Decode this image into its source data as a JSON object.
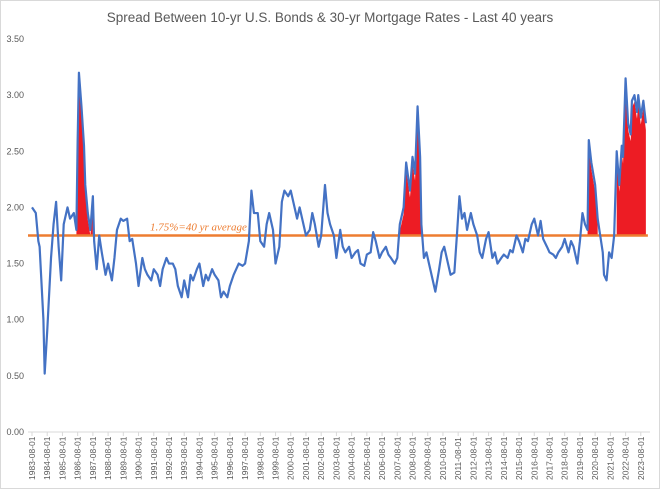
{
  "chart_data": {
    "type": "line",
    "title": "Spread Between 10-yr U.S. Bonds & 30-yr Mortgage Rates - Last 40 years",
    "xlabel": "",
    "ylabel": "",
    "ylim": [
      0,
      3.5
    ],
    "yticks": [
      "0.00",
      "0.50",
      "1.00",
      "1.50",
      "2.00",
      "2.50",
      "3.00",
      "3.50"
    ],
    "xtick_labels": [
      "1983-08-01",
      "1984-08-01",
      "1985-08-01",
      "1986-08-01",
      "1987-08-01",
      "1988-08-01",
      "1989-08-01",
      "1990-08-01",
      "1991-08-01",
      "1992-08-01",
      "1993-08-01",
      "1994-08-01",
      "1995-08-01",
      "1996-08-01",
      "1997-08-01",
      "1998-08-01",
      "1999-08-01",
      "2000-08-01",
      "2001-08-01",
      "2002-08-01",
      "2003-08-01",
      "2004-08-01",
      "2005-08-01",
      "2006-08-01",
      "2007-08-01",
      "2008-08-01",
      "2009-08-01",
      "2010-08-01",
      "2011-08-01",
      "2012-08-01",
      "2013-08-01",
      "2014-08-01",
      "2015-08-01",
      "2016-08-01",
      "2017-08-01",
      "2018-08-01",
      "2019-08-01",
      "2020-08-01",
      "2021-08-01",
      "2022-08-01",
      "2023-08-01"
    ],
    "grid": false,
    "colors": {
      "spread": "#4472c4",
      "average": "#ed7d31",
      "above_average_fill": "#ed1c24"
    },
    "average": {
      "value": 1.75,
      "label": "1.75%=40 yr average"
    },
    "highlight_ranges": [
      [
        "1986-07",
        "1987-08"
      ],
      [
        "2007-09",
        "2009-03"
      ],
      [
        "2020-02",
        "2020-11"
      ],
      [
        "2021-12",
        "2023-12"
      ]
    ],
    "series": [
      {
        "values": [
          [
            "1983-08",
            2.0
          ],
          [
            "1983-11",
            1.95
          ],
          [
            "1984-01",
            1.7
          ],
          [
            "1984-02",
            1.65
          ],
          [
            "1984-05",
            1.0
          ],
          [
            "1984-06",
            0.52
          ],
          [
            "1984-08",
            0.9
          ],
          [
            "1984-11",
            1.55
          ],
          [
            "1985-01",
            1.85
          ],
          [
            "1985-03",
            2.05
          ],
          [
            "1985-05",
            1.65
          ],
          [
            "1985-07",
            1.35
          ],
          [
            "1985-09",
            1.85
          ],
          [
            "1985-12",
            2.0
          ],
          [
            "1986-02",
            1.9
          ],
          [
            "1986-05",
            1.95
          ],
          [
            "1986-07",
            1.8
          ],
          [
            "1986-08",
            2.6
          ],
          [
            "1986-09",
            3.2
          ],
          [
            "1986-11",
            2.9
          ],
          [
            "1987-01",
            2.55
          ],
          [
            "1987-02",
            2.2
          ],
          [
            "1987-04",
            1.95
          ],
          [
            "1987-06",
            1.8
          ],
          [
            "1987-08",
            2.1
          ],
          [
            "1987-09",
            1.7
          ],
          [
            "1987-11",
            1.45
          ],
          [
            "1988-01",
            1.75
          ],
          [
            "1988-03",
            1.6
          ],
          [
            "1988-06",
            1.4
          ],
          [
            "1988-08",
            1.5
          ],
          [
            "1988-11",
            1.35
          ],
          [
            "1989-01",
            1.55
          ],
          [
            "1989-03",
            1.8
          ],
          [
            "1989-06",
            1.9
          ],
          [
            "1989-08",
            1.88
          ],
          [
            "1989-11",
            1.9
          ],
          [
            "1990-01",
            1.7
          ],
          [
            "1990-03",
            1.72
          ],
          [
            "1990-06",
            1.5
          ],
          [
            "1990-08",
            1.3
          ],
          [
            "1990-11",
            1.55
          ],
          [
            "1991-01",
            1.45
          ],
          [
            "1991-03",
            1.4
          ],
          [
            "1991-06",
            1.35
          ],
          [
            "1991-08",
            1.45
          ],
          [
            "1991-11",
            1.4
          ],
          [
            "1992-01",
            1.3
          ],
          [
            "1992-03",
            1.45
          ],
          [
            "1992-06",
            1.55
          ],
          [
            "1992-08",
            1.5
          ],
          [
            "1992-11",
            1.5
          ],
          [
            "1993-01",
            1.45
          ],
          [
            "1993-03",
            1.3
          ],
          [
            "1993-06",
            1.2
          ],
          [
            "1993-08",
            1.35
          ],
          [
            "1993-11",
            1.2
          ],
          [
            "1994-01",
            1.4
          ],
          [
            "1994-03",
            1.35
          ],
          [
            "1994-06",
            1.45
          ],
          [
            "1994-08",
            1.5
          ],
          [
            "1994-11",
            1.3
          ],
          [
            "1995-01",
            1.4
          ],
          [
            "1995-03",
            1.35
          ],
          [
            "1995-06",
            1.45
          ],
          [
            "1995-08",
            1.4
          ],
          [
            "1995-11",
            1.35
          ],
          [
            "1996-01",
            1.2
          ],
          [
            "1996-03",
            1.25
          ],
          [
            "1996-06",
            1.2
          ],
          [
            "1996-08",
            1.3
          ],
          [
            "1996-11",
            1.4
          ],
          [
            "1997-01",
            1.45
          ],
          [
            "1997-03",
            1.5
          ],
          [
            "1997-06",
            1.48
          ],
          [
            "1997-08",
            1.5
          ],
          [
            "1997-11",
            1.7
          ],
          [
            "1998-01",
            2.15
          ],
          [
            "1998-03",
            1.95
          ],
          [
            "1998-06",
            1.95
          ],
          [
            "1998-08",
            1.7
          ],
          [
            "1998-11",
            1.65
          ],
          [
            "1999-01",
            1.85
          ],
          [
            "1999-03",
            1.95
          ],
          [
            "1999-06",
            1.8
          ],
          [
            "1999-08",
            1.5
          ],
          [
            "1999-11",
            1.65
          ],
          [
            "2000-01",
            2.05
          ],
          [
            "2000-03",
            2.15
          ],
          [
            "2000-06",
            2.1
          ],
          [
            "2000-08",
            2.15
          ],
          [
            "2000-11",
            2.0
          ],
          [
            "2001-01",
            1.9
          ],
          [
            "2001-03",
            2.0
          ],
          [
            "2001-06",
            1.85
          ],
          [
            "2001-08",
            1.75
          ],
          [
            "2001-11",
            1.8
          ],
          [
            "2002-01",
            1.95
          ],
          [
            "2002-03",
            1.85
          ],
          [
            "2002-06",
            1.65
          ],
          [
            "2002-08",
            1.75
          ],
          [
            "2002-11",
            2.2
          ],
          [
            "2003-01",
            1.95
          ],
          [
            "2003-03",
            1.85
          ],
          [
            "2003-06",
            1.75
          ],
          [
            "2003-08",
            1.55
          ],
          [
            "2003-11",
            1.8
          ],
          [
            "2004-01",
            1.65
          ],
          [
            "2004-03",
            1.6
          ],
          [
            "2004-06",
            1.65
          ],
          [
            "2004-08",
            1.55
          ],
          [
            "2004-11",
            1.6
          ],
          [
            "2005-01",
            1.62
          ],
          [
            "2005-03",
            1.5
          ],
          [
            "2005-06",
            1.48
          ],
          [
            "2005-08",
            1.58
          ],
          [
            "2005-11",
            1.6
          ],
          [
            "2006-01",
            1.78
          ],
          [
            "2006-03",
            1.7
          ],
          [
            "2006-06",
            1.55
          ],
          [
            "2006-08",
            1.6
          ],
          [
            "2006-11",
            1.65
          ],
          [
            "2007-01",
            1.58
          ],
          [
            "2007-03",
            1.55
          ],
          [
            "2007-06",
            1.5
          ],
          [
            "2007-08",
            1.55
          ],
          [
            "2007-10",
            1.85
          ],
          [
            "2008-01",
            2.0
          ],
          [
            "2008-03",
            2.4
          ],
          [
            "2008-06",
            2.15
          ],
          [
            "2008-08",
            2.45
          ],
          [
            "2008-10",
            2.3
          ],
          [
            "2008-12",
            2.9
          ],
          [
            "2009-02",
            2.45
          ],
          [
            "2009-03",
            1.85
          ],
          [
            "2009-05",
            1.55
          ],
          [
            "2009-07",
            1.6
          ],
          [
            "2009-09",
            1.5
          ],
          [
            "2009-12",
            1.35
          ],
          [
            "2010-02",
            1.25
          ],
          [
            "2010-05",
            1.45
          ],
          [
            "2010-07",
            1.6
          ],
          [
            "2010-09",
            1.65
          ],
          [
            "2010-12",
            1.5
          ],
          [
            "2011-02",
            1.4
          ],
          [
            "2011-05",
            1.42
          ],
          [
            "2011-07",
            1.75
          ],
          [
            "2011-09",
            2.1
          ],
          [
            "2011-11",
            1.9
          ],
          [
            "2012-01",
            1.95
          ],
          [
            "2012-03",
            1.8
          ],
          [
            "2012-06",
            1.95
          ],
          [
            "2012-08",
            1.85
          ],
          [
            "2012-11",
            1.75
          ],
          [
            "2013-01",
            1.6
          ],
          [
            "2013-03",
            1.55
          ],
          [
            "2013-06",
            1.72
          ],
          [
            "2013-08",
            1.78
          ],
          [
            "2013-11",
            1.55
          ],
          [
            "2014-01",
            1.6
          ],
          [
            "2014-03",
            1.5
          ],
          [
            "2014-06",
            1.55
          ],
          [
            "2014-08",
            1.58
          ],
          [
            "2014-11",
            1.55
          ],
          [
            "2015-01",
            1.62
          ],
          [
            "2015-03",
            1.6
          ],
          [
            "2015-06",
            1.75
          ],
          [
            "2015-08",
            1.7
          ],
          [
            "2015-11",
            1.6
          ],
          [
            "2016-01",
            1.72
          ],
          [
            "2016-03",
            1.7
          ],
          [
            "2016-06",
            1.85
          ],
          [
            "2016-08",
            1.9
          ],
          [
            "2016-11",
            1.75
          ],
          [
            "2017-01",
            1.88
          ],
          [
            "2017-03",
            1.72
          ],
          [
            "2017-06",
            1.65
          ],
          [
            "2017-08",
            1.6
          ],
          [
            "2017-11",
            1.58
          ],
          [
            "2018-01",
            1.55
          ],
          [
            "2018-03",
            1.6
          ],
          [
            "2018-06",
            1.65
          ],
          [
            "2018-08",
            1.72
          ],
          [
            "2018-11",
            1.6
          ],
          [
            "2019-01",
            1.7
          ],
          [
            "2019-03",
            1.65
          ],
          [
            "2019-06",
            1.5
          ],
          [
            "2019-08",
            1.7
          ],
          [
            "2019-10",
            1.95
          ],
          [
            "2019-12",
            1.85
          ],
          [
            "2020-02",
            1.8
          ],
          [
            "2020-03",
            2.6
          ],
          [
            "2020-05",
            2.4
          ],
          [
            "2020-08",
            2.2
          ],
          [
            "2020-10",
            1.9
          ],
          [
            "2020-12",
            1.75
          ],
          [
            "2021-02",
            1.6
          ],
          [
            "2021-03",
            1.4
          ],
          [
            "2021-05",
            1.35
          ],
          [
            "2021-07",
            1.6
          ],
          [
            "2021-09",
            1.55
          ],
          [
            "2021-11",
            1.75
          ],
          [
            "2022-01",
            2.5
          ],
          [
            "2022-03",
            2.2
          ],
          [
            "2022-05",
            2.55
          ],
          [
            "2022-06",
            2.45
          ],
          [
            "2022-08",
            3.15
          ],
          [
            "2022-10",
            2.75
          ],
          [
            "2022-12",
            2.65
          ],
          [
            "2023-01",
            2.95
          ],
          [
            "2023-03",
            3.0
          ],
          [
            "2023-05",
            2.85
          ],
          [
            "2023-06",
            3.0
          ],
          [
            "2023-08",
            2.8
          ],
          [
            "2023-10",
            2.95
          ],
          [
            "2023-12",
            2.75
          ]
        ]
      }
    ]
  }
}
